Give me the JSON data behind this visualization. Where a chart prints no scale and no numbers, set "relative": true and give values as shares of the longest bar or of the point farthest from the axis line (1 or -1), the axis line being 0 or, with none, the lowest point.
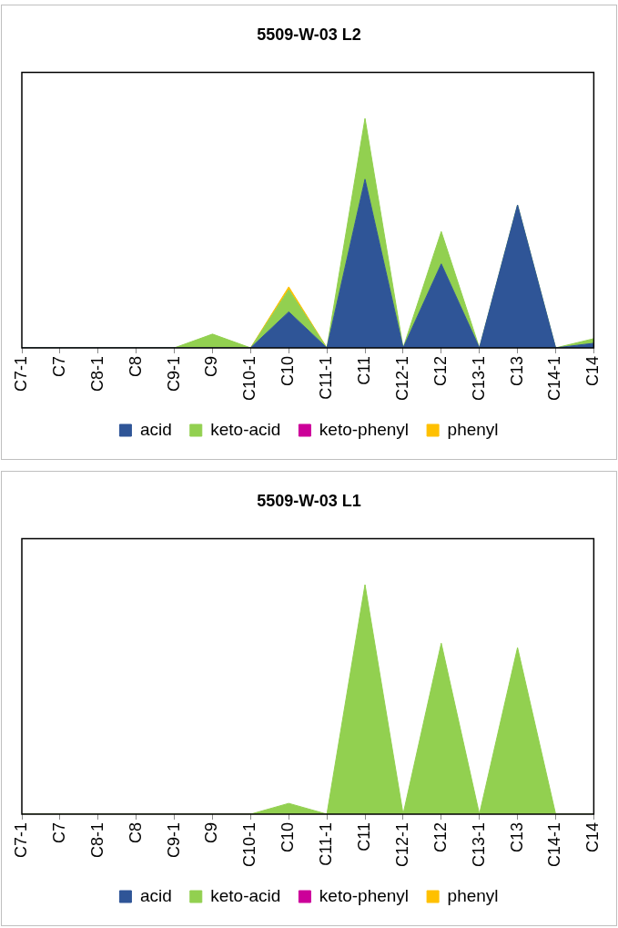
{
  "chart_data": [
    {
      "type": "area",
      "title": "5509-W-03 L2",
      "relative": true,
      "stacked": true,
      "legend": "bottom",
      "grid": false,
      "categories": [
        "C7-1",
        "C7",
        "C8-1",
        "C8",
        "C9-1",
        "C9",
        "C10-1",
        "C10",
        "C11-1",
        "C11",
        "C12-1",
        "C12",
        "C13-1",
        "C13",
        "C14-1",
        "C14"
      ],
      "series": [
        {
          "name": "acid",
          "color": "#2f5597",
          "values": [
            0,
            0,
            0,
            0,
            0,
            0,
            0,
            0.157,
            0,
            0.735,
            0,
            0.366,
            0,
            0.623,
            0,
            0.02
          ]
        },
        {
          "name": "keto-acid",
          "color": "#92d050",
          "values": [
            0,
            0,
            0,
            0,
            0,
            0.06,
            0,
            0.096,
            0,
            0.265,
            0,
            0.141,
            0,
            0,
            0,
            0.02
          ]
        },
        {
          "name": "keto-phenyl",
          "color": "#cc0099",
          "values": [
            null,
            null,
            null,
            null,
            null,
            null,
            null,
            null,
            null,
            null,
            null,
            null,
            null,
            null,
            null,
            null
          ]
        },
        {
          "name": "phenyl",
          "color": "#ffc000",
          "values": [
            null,
            null,
            null,
            null,
            null,
            null,
            0,
            0.013,
            0,
            null,
            null,
            null,
            null,
            null,
            null,
            null
          ]
        }
      ]
    },
    {
      "type": "area",
      "title": "5509-W-03 L1",
      "relative": true,
      "stacked": true,
      "legend": "bottom",
      "grid": false,
      "categories": [
        "C7-1",
        "C7",
        "C8-1",
        "C8",
        "C9-1",
        "C9",
        "C10-1",
        "C10",
        "C11-1",
        "C11",
        "C12-1",
        "C12",
        "C13-1",
        "C13",
        "C14-1",
        "C14"
      ],
      "series": [
        {
          "name": "acid",
          "color": "#2f5597",
          "values": [
            null,
            null,
            null,
            null,
            null,
            null,
            null,
            null,
            null,
            null,
            null,
            null,
            null,
            null,
            null,
            null
          ]
        },
        {
          "name": "keto-acid",
          "color": "#92d050",
          "values": [
            0,
            0,
            0,
            0,
            0,
            0,
            0,
            0.047,
            0,
            1,
            0,
            0.745,
            0,
            0.726,
            0,
            0
          ]
        },
        {
          "name": "keto-phenyl",
          "color": "#cc0099",
          "values": [
            null,
            null,
            null,
            null,
            null,
            null,
            null,
            null,
            null,
            null,
            null,
            null,
            null,
            null,
            null,
            null
          ]
        },
        {
          "name": "phenyl",
          "color": "#ffc000",
          "values": [
            null,
            null,
            null,
            null,
            null,
            null,
            null,
            null,
            null,
            null,
            null,
            null,
            null,
            null,
            null,
            null
          ]
        }
      ]
    }
  ]
}
